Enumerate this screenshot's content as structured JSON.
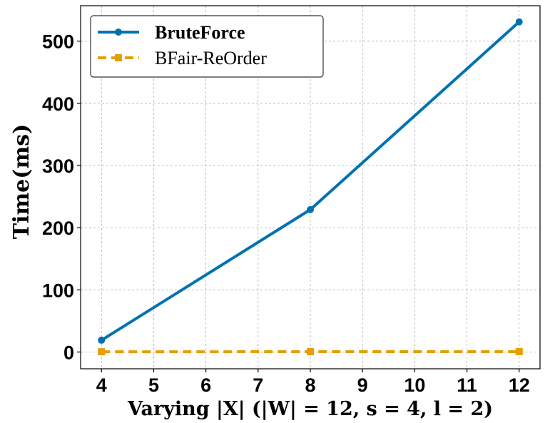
{
  "chart_data": {
    "type": "line",
    "x": [
      4,
      8,
      12
    ],
    "series": [
      {
        "name": "BruteForce",
        "values": [
          19,
          229,
          531
        ],
        "color": "#0072B2",
        "style": "solid",
        "marker": "circle"
      },
      {
        "name": "BFair-ReOrder",
        "values": [
          0.4,
          0.5,
          0.6
        ],
        "color": "#E69F00",
        "style": "dashed",
        "marker": "square"
      }
    ],
    "xlabel": "Varying |X| (|W| = 12, s = 4, l = 2)",
    "ylabel": "Time(ms)",
    "xlim": [
      3.6,
      12.4
    ],
    "ylim": [
      -27,
      557
    ],
    "xticks": [
      4,
      5,
      6,
      7,
      8,
      9,
      10,
      11,
      12
    ],
    "yticks": [
      0,
      100,
      200,
      300,
      400,
      500
    ],
    "grid": true,
    "legend_position": "top-left"
  }
}
